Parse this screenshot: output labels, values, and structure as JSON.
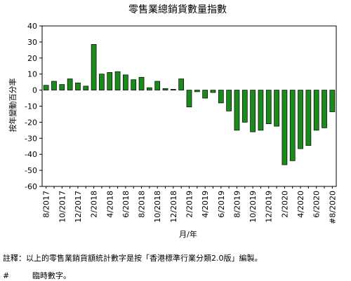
{
  "chart_data": {
    "type": "bar",
    "title": "零售業總銷貨數量指數",
    "xlabel": "月/年",
    "ylabel": "按年變動百分率",
    "ylim": [
      -60,
      40
    ],
    "yticks": [
      40,
      30,
      20,
      10,
      0,
      -10,
      -20,
      -30,
      -40,
      -50,
      -60
    ],
    "grid": false,
    "bar_color": "#1a8a1a",
    "bar_edge_color": "#000000",
    "categories": [
      "8/2017",
      "9/2017",
      "10/2017",
      "11/2017",
      "12/2017",
      "1/2018",
      "2/2018",
      "3/2018",
      "4/2018",
      "5/2018",
      "6/2018",
      "7/2018",
      "8/2018",
      "9/2018",
      "10/2018",
      "11/2018",
      "12/2018",
      "1/2019",
      "2/2019",
      "3/2019",
      "4/2019",
      "5/2019",
      "6/2019",
      "7/2019",
      "8/2019",
      "9/2019",
      "10/2019",
      "11/2019",
      "12/2019",
      "1/2020",
      "2/2020",
      "3/2020",
      "4/2020",
      "5/2020",
      "6/2020",
      "7/2020",
      "8/2020"
    ],
    "tick_labels": [
      "8/2017",
      "",
      "10/2017",
      "",
      "12/2017",
      "",
      "2/2018",
      "",
      "4/2018",
      "",
      "6/2018",
      "",
      "8/2018",
      "",
      "10/2018",
      "",
      "12/2018",
      "",
      "2/2019",
      "",
      "4/2019",
      "",
      "6/2019",
      "",
      "8/2019",
      "",
      "10/2019",
      "",
      "12/2019",
      "",
      "2/2020",
      "",
      "4/2020",
      "",
      "6/2020",
      "",
      "#8/2020"
    ],
    "values": [
      3.0,
      5.5,
      3.5,
      7.0,
      4.5,
      2.5,
      28.5,
      10.0,
      11.0,
      11.5,
      9.5,
      6.5,
      8.0,
      1.5,
      5.5,
      1.0,
      0.5,
      7.0,
      -10.5,
      -1.0,
      -5.0,
      -1.5,
      -8.0,
      -13.0,
      -25.0,
      -20.0,
      -26.0,
      -25.0,
      -21.0,
      -22.5,
      -46.5,
      -44.0,
      -36.5,
      -34.5,
      -25.0,
      -23.5,
      -13.5
    ]
  },
  "footnotes": {
    "note": "註釋：以上的零售業銷貨額統計數字是按「香港標準行業分類2.0版」編製。",
    "hash_symbol": "#",
    "hash_text": "臨時數字。"
  }
}
